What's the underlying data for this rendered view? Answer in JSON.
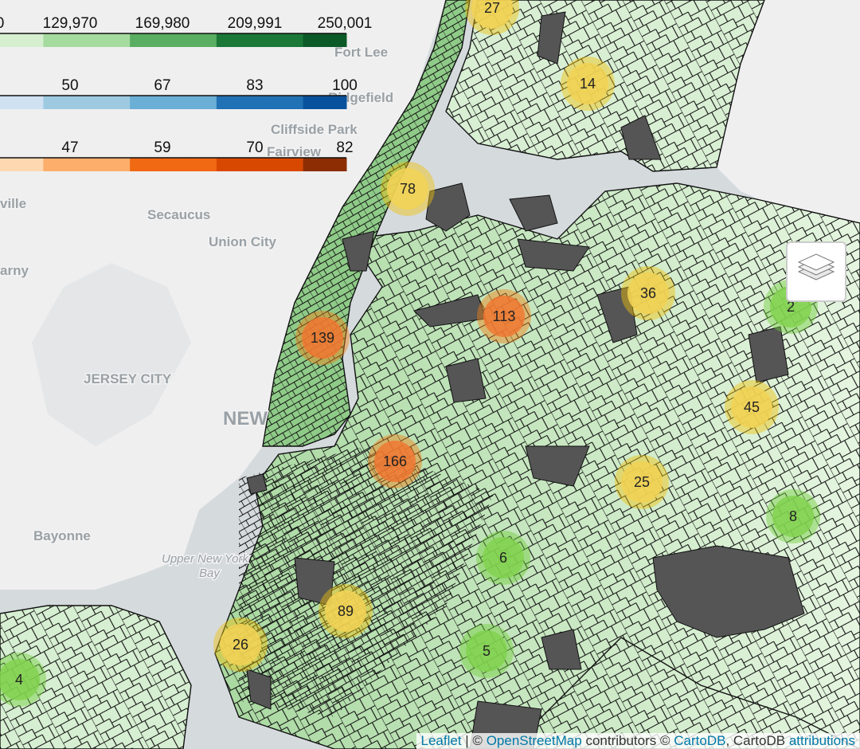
{
  "legend": [
    {
      "ticks": [
        "0",
        "129,970",
        "169,980",
        "209,991",
        "250,001"
      ]
    },
    {
      "ticks": [
        "50",
        "67",
        "83",
        "100"
      ]
    },
    {
      "ticks": [
        "47",
        "59",
        "70",
        "82"
      ]
    }
  ],
  "place_labels": [
    "Fort Lee",
    "Ridgefield",
    "Cliffside Park",
    "Fairview",
    "ville",
    "Secaucus",
    "Union City",
    "arny",
    "JERSEY CITY",
    "NEW",
    "Bayonne",
    "Upper New York",
    "Bay"
  ],
  "clusters": [
    "27",
    "14",
    "78",
    "36",
    "2",
    "113",
    "139",
    "45",
    "166",
    "25",
    "8",
    "6",
    "89",
    "26",
    "5",
    "4"
  ],
  "attribution": {
    "leaflet": "Leaflet",
    "sep": "| ©",
    "osm": "OpenStreetMap",
    "contrib": "contributors ©",
    "carto": "CartoDB",
    "carto2": ", CartoDB",
    "attr": "attributions"
  }
}
